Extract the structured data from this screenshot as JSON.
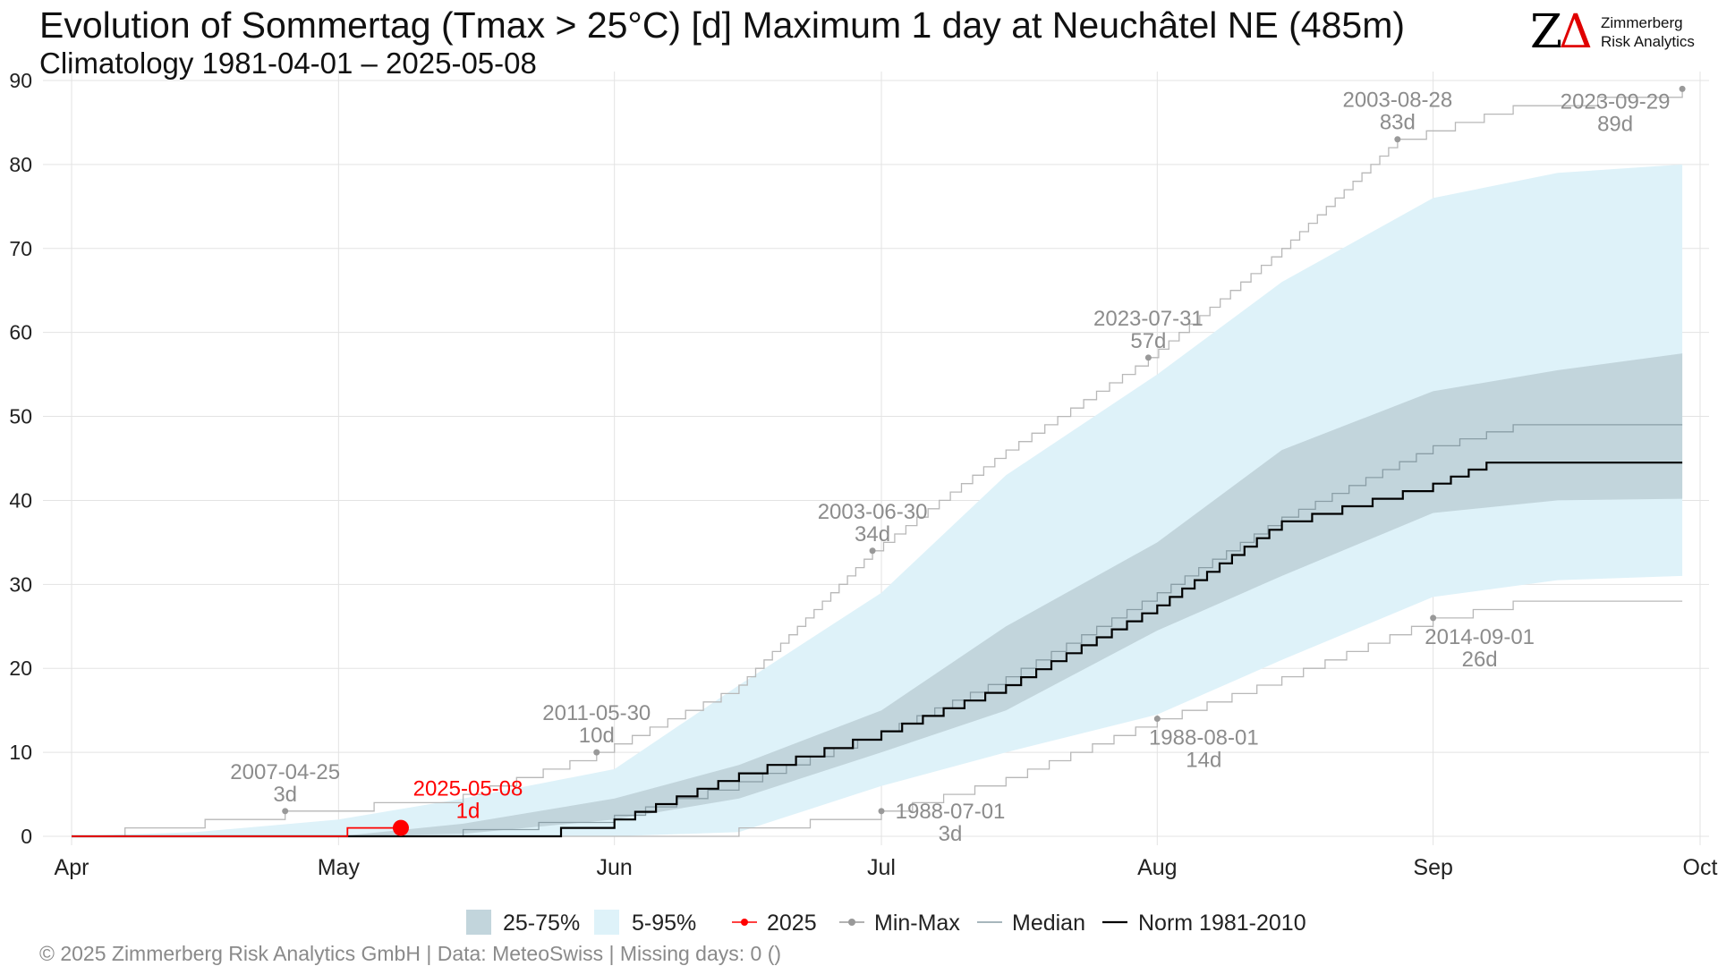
{
  "header": {
    "title": "Evolution of Sommertag (Tmax > 25°C) [d] Maximum 1 day at Neuchâtel  NE (485m)",
    "subtitle": "Climatology 1981-04-01 – 2025-05-08"
  },
  "logo": {
    "mark_letter": "Z",
    "mark_delta": "Δ",
    "name_line1": "Zimmerberg",
    "name_line2": "Risk Analytics"
  },
  "footer": {
    "text": "©  2025 Zimmerberg Risk Analytics GmbH | Data: MeteoSwiss | Missing days: 0 ()"
  },
  "chart_data": {
    "type": "line",
    "title": "Evolution of Sommertag (Tmax > 25°C) [d] Maximum 1 day at Neuchâtel  NE (485m)",
    "subtitle": "Climatology 1981-04-01 – 2025-05-08",
    "xlabel": "",
    "ylabel": "",
    "ylim": [
      0,
      90
    ],
    "yticks": [
      0,
      10,
      20,
      30,
      40,
      50,
      60,
      70,
      80,
      90
    ],
    "xlim": [
      "2025-04-01",
      "2025-10-01"
    ],
    "xticks": [
      {
        "date": "2025-04-01",
        "label": "Apr"
      },
      {
        "date": "2025-05-01",
        "label": "May"
      },
      {
        "date": "2025-06-01",
        "label": "Jun"
      },
      {
        "date": "2025-07-01",
        "label": "Jul"
      },
      {
        "date": "2025-08-01",
        "label": "Aug"
      },
      {
        "date": "2025-09-01",
        "label": "Sep"
      },
      {
        "date": "2025-10-01",
        "label": "Oct"
      }
    ],
    "grid": true,
    "legend_position": "bottom",
    "colors": {
      "band_25_75": "#c2d5dc",
      "band_5_95": "#def2f9",
      "current": "#ff0000",
      "minmax": "#999999",
      "median": "#8a9ea6",
      "norm": "#000000",
      "annotation": "#8c8c8c"
    },
    "legend": [
      {
        "key": "band_25_75",
        "label": "25-75%",
        "kind": "fill"
      },
      {
        "key": "band_5_95",
        "label": "5-95%",
        "kind": "fill"
      },
      {
        "key": "current",
        "label": "2025",
        "kind": "line-dot"
      },
      {
        "key": "minmax",
        "label": "Min-Max",
        "kind": "line-dot"
      },
      {
        "key": "median",
        "label": "Median",
        "kind": "line"
      },
      {
        "key": "norm",
        "label": "Norm 1981-2010",
        "kind": "line"
      }
    ],
    "bands": {
      "x": [
        "2025-04-01",
        "2025-04-15",
        "2025-05-01",
        "2025-05-15",
        "2025-06-01",
        "2025-06-15",
        "2025-07-01",
        "2025-07-15",
        "2025-08-01",
        "2025-08-15",
        "2025-09-01",
        "2025-09-15",
        "2025-09-29"
      ],
      "p05": [
        0,
        0,
        0,
        0,
        0,
        0.5,
        6,
        10,
        14.5,
        21,
        28.5,
        30.5,
        31
      ],
      "p25": [
        0,
        0,
        0,
        0.3,
        2,
        4.5,
        10,
        15,
        24.5,
        31,
        38.5,
        40,
        40.2
      ],
      "p75": [
        0,
        0,
        0,
        1.5,
        4.5,
        8.5,
        15,
        25,
        35,
        46,
        53,
        55.5,
        57.5
      ],
      "p95": [
        0,
        0.5,
        2,
        4.5,
        8,
        18,
        29,
        43,
        55,
        66,
        76,
        79,
        80
      ]
    },
    "series": [
      {
        "name": "2025",
        "key": "current",
        "x": [
          "2025-04-01",
          "2025-05-02",
          "2025-05-08"
        ],
        "values": [
          0,
          1,
          1
        ]
      },
      {
        "name": "Median",
        "key": "median",
        "x": [
          "2025-04-01",
          "2025-05-01",
          "2025-05-15",
          "2025-06-01",
          "2025-06-15",
          "2025-07-01",
          "2025-07-15",
          "2025-08-01",
          "2025-08-15",
          "2025-09-01",
          "2025-09-10",
          "2025-09-29"
        ],
        "values": [
          0,
          0,
          0.8,
          2.5,
          6.5,
          12.5,
          19,
          29,
          38,
          46.5,
          49,
          49
        ]
      },
      {
        "name": "Norm 1981-2010",
        "key": "norm",
        "x": [
          "2025-04-01",
          "2025-05-20",
          "2025-06-01",
          "2025-06-15",
          "2025-07-01",
          "2025-07-15",
          "2025-08-01",
          "2025-08-15",
          "2025-09-01",
          "2025-09-07",
          "2025-09-29"
        ],
        "values": [
          0,
          0,
          2,
          7.5,
          12.5,
          18,
          27.5,
          37.5,
          42,
          44.5,
          44.5
        ]
      },
      {
        "name": "Max",
        "key": "minmax",
        "x": [
          "2025-04-01",
          "2025-04-07",
          "2025-04-25",
          "2025-05-15",
          "2025-05-30",
          "2025-06-15",
          "2025-06-30",
          "2025-07-15",
          "2025-07-31",
          "2025-08-15",
          "2025-08-28",
          "2025-09-10",
          "2025-09-29"
        ],
        "values": [
          0,
          1,
          3,
          5,
          10,
          18,
          34,
          46,
          57,
          70,
          83,
          87,
          89
        ]
      },
      {
        "name": "Min",
        "key": "minmax",
        "x": [
          "2025-04-01",
          "2025-06-15",
          "2025-07-01",
          "2025-07-15",
          "2025-08-01",
          "2025-08-15",
          "2025-09-01",
          "2025-09-10",
          "2025-09-29"
        ],
        "values": [
          0,
          1,
          3,
          7,
          14,
          19,
          26,
          28,
          28
        ]
      }
    ],
    "annotations": [
      {
        "x": "2025-04-25",
        "y": 3,
        "date": "2007-04-25",
        "value": "3d",
        "kind": "minmax",
        "side": "top"
      },
      {
        "x": "2025-05-30",
        "y": 10,
        "date": "2011-05-30",
        "value": "10d",
        "kind": "minmax",
        "side": "top"
      },
      {
        "x": "2025-06-30",
        "y": 34,
        "date": "2003-06-30",
        "value": "34d",
        "kind": "minmax",
        "side": "top"
      },
      {
        "x": "2025-07-31",
        "y": 57,
        "date": "2023-07-31",
        "value": "57d",
        "kind": "minmax",
        "side": "top"
      },
      {
        "x": "2025-08-28",
        "y": 83,
        "date": "2003-08-28",
        "value": "83d",
        "kind": "minmax",
        "side": "top"
      },
      {
        "x": "2025-09-29",
        "y": 89,
        "date": "2023-09-29",
        "value": "89d",
        "kind": "minmax",
        "side": "top-left"
      },
      {
        "x": "2025-07-01",
        "y": 3,
        "date": "1988-07-01",
        "value": "3d",
        "kind": "minmax",
        "side": "right"
      },
      {
        "x": "2025-08-01",
        "y": 14,
        "date": "1988-08-01",
        "value": "14d",
        "kind": "minmax",
        "side": "bottom"
      },
      {
        "x": "2025-09-01",
        "y": 26,
        "date": "2014-09-01",
        "value": "26d",
        "kind": "minmax",
        "side": "bottom"
      },
      {
        "x": "2025-05-08",
        "y": 1,
        "date": "2025-05-08",
        "value": "1d",
        "kind": "current",
        "side": "top"
      }
    ]
  }
}
